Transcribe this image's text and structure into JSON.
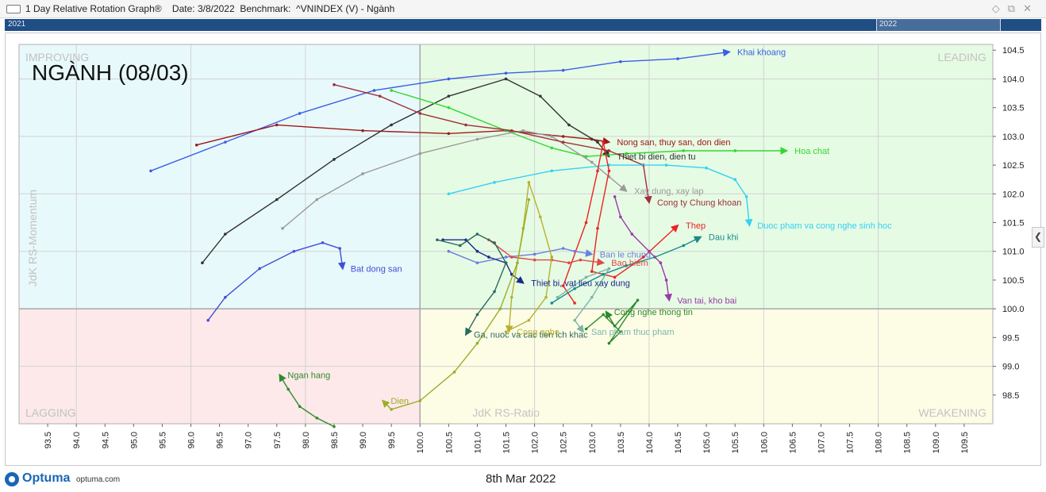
{
  "window": {
    "title": "1 Day Relative Rotation Graph®    Date: 3/8/2022  Benchmark:  ^VNINDEX (V) - Ngành",
    "icons": [
      "pin-icon",
      "restore-icon",
      "close-icon"
    ]
  },
  "timeline": {
    "start_label": "2021",
    "end_label": "2022"
  },
  "footer": {
    "logo": "Optuma",
    "url": "optuma.com",
    "date": "8th Mar 2022"
  },
  "chart_data": {
    "type": "scatter",
    "title": "NGÀNH (08/03)",
    "xlabel": "JdK RS-Ratio",
    "ylabel": "JdK RS-Momentum",
    "xlim": [
      93.0,
      110.0
    ],
    "ylim": [
      98.0,
      104.6
    ],
    "x_ticks": [
      "93.5",
      "94.0",
      "94.5",
      "95.0",
      "95.5",
      "96.0",
      "96.5",
      "97.0",
      "97.5",
      "98.0",
      "98.5",
      "99.0",
      "99.5",
      "100.0",
      "100.5",
      "101.0",
      "101.5",
      "102.0",
      "102.5",
      "103.0",
      "103.5",
      "104.0",
      "104.5",
      "105.0",
      "105.5",
      "106.0",
      "106.5",
      "107.0",
      "107.5",
      "108.0",
      "108.5",
      "109.0",
      "109.5"
    ],
    "y_ticks": [
      "98.5",
      "99.0",
      "99.5",
      "100.0",
      "100.5",
      "101.0",
      "101.5",
      "102.0",
      "102.5",
      "103.0",
      "103.5",
      "104.0",
      "104.5"
    ],
    "center": [
      100.0,
      100.0
    ],
    "quadrants": {
      "improving": {
        "label": "IMPROVING",
        "color": "#e8f9fb"
      },
      "leading": {
        "label": "LEADING",
        "color": "#e6fbe4"
      },
      "lagging": {
        "label": "LAGGING",
        "color": "#fde9e9"
      },
      "weakening": {
        "label": "WEAKENING",
        "color": "#fdfde6"
      }
    },
    "series": [
      {
        "name": "Khai khoang",
        "color": "#3a5fe6",
        "points": [
          [
            95.3,
            102.4
          ],
          [
            96.6,
            102.9
          ],
          [
            97.9,
            103.4
          ],
          [
            99.2,
            103.8
          ],
          [
            100.5,
            104.0
          ],
          [
            101.5,
            104.1
          ],
          [
            102.5,
            104.15
          ],
          [
            103.5,
            104.3
          ],
          [
            104.5,
            104.35
          ],
          [
            105.4,
            104.47
          ]
        ]
      },
      {
        "name": "Nong san, thuy san, don dien",
        "color": "#a01818",
        "points": [
          [
            96.1,
            102.85
          ],
          [
            97.5,
            103.2
          ],
          [
            99.0,
            103.1
          ],
          [
            100.5,
            103.05
          ],
          [
            101.5,
            103.1
          ],
          [
            102.5,
            103.0
          ],
          [
            103.0,
            102.95
          ],
          [
            103.3,
            102.9
          ]
        ]
      },
      {
        "name": "Thiet bi dien, dien tu",
        "color": "#333333",
        "points": [
          [
            96.2,
            100.8
          ],
          [
            96.6,
            101.3
          ],
          [
            97.5,
            101.9
          ],
          [
            98.5,
            102.6
          ],
          [
            99.5,
            103.2
          ],
          [
            100.5,
            103.7
          ],
          [
            101.5,
            104.0
          ],
          [
            102.1,
            103.7
          ],
          [
            102.6,
            103.2
          ],
          [
            103.1,
            102.9
          ],
          [
            103.3,
            102.65
          ]
        ]
      },
      {
        "name": "Hoa chat",
        "color": "#33d633",
        "points": [
          [
            99.5,
            103.8
          ],
          [
            100.5,
            103.5
          ],
          [
            101.5,
            103.1
          ],
          [
            102.3,
            102.8
          ],
          [
            102.9,
            102.65
          ],
          [
            103.6,
            102.7
          ],
          [
            104.6,
            102.75
          ],
          [
            105.5,
            102.75
          ],
          [
            106.4,
            102.75
          ]
        ]
      },
      {
        "name": "Xay dung, xay lap",
        "color": "#9a9a9a",
        "points": [
          [
            97.6,
            101.4
          ],
          [
            98.2,
            101.9
          ],
          [
            99.0,
            102.35
          ],
          [
            100.0,
            102.7
          ],
          [
            101.0,
            102.95
          ],
          [
            101.8,
            103.1
          ],
          [
            102.3,
            103.0
          ],
          [
            103.0,
            102.55
          ],
          [
            103.3,
            102.3
          ],
          [
            103.6,
            102.05
          ]
        ]
      },
      {
        "name": "Cong ty Chung khoan",
        "color": "#a0303c",
        "points": [
          [
            98.5,
            103.9
          ],
          [
            99.3,
            103.7
          ],
          [
            100.0,
            103.4
          ],
          [
            100.8,
            103.2
          ],
          [
            101.6,
            103.1
          ],
          [
            102.5,
            102.9
          ],
          [
            103.3,
            102.75
          ],
          [
            103.9,
            102.5
          ],
          [
            104.0,
            101.85
          ]
        ]
      },
      {
        "name": "Duoc pham va cong nghe sinh hoc",
        "color": "#33d2f2",
        "points": [
          [
            100.5,
            102.0
          ],
          [
            101.3,
            102.2
          ],
          [
            102.3,
            102.4
          ],
          [
            103.3,
            102.5
          ],
          [
            104.3,
            102.5
          ],
          [
            105.0,
            102.45
          ],
          [
            105.5,
            102.25
          ],
          [
            105.7,
            101.95
          ],
          [
            105.75,
            101.45
          ]
        ]
      },
      {
        "name": "Thep",
        "color": "#ee2222",
        "points": [
          [
            102.7,
            100.1
          ],
          [
            102.5,
            100.4
          ],
          [
            102.9,
            101.5
          ],
          [
            103.1,
            102.4
          ],
          [
            103.2,
            102.9
          ],
          [
            103.3,
            102.4
          ],
          [
            103.1,
            101.4
          ],
          [
            103.0,
            100.65
          ],
          [
            103.4,
            100.55
          ],
          [
            103.9,
            100.9
          ],
          [
            104.5,
            101.45
          ]
        ]
      },
      {
        "name": "Dau khi",
        "color": "#1a8a8a",
        "points": [
          [
            102.3,
            100.1
          ],
          [
            102.7,
            100.35
          ],
          [
            103.2,
            100.6
          ],
          [
            103.6,
            100.75
          ],
          [
            104.1,
            100.9
          ],
          [
            104.6,
            101.1
          ],
          [
            104.9,
            101.25
          ]
        ]
      },
      {
        "name": "Ban le chung",
        "color": "#6b7fe0",
        "points": [
          [
            100.5,
            101.0
          ],
          [
            101.0,
            100.8
          ],
          [
            101.5,
            100.9
          ],
          [
            102.0,
            100.95
          ],
          [
            102.5,
            101.05
          ],
          [
            102.7,
            101.0
          ],
          [
            103.0,
            100.95
          ]
        ]
      },
      {
        "name": "Bao hiem",
        "color": "#e04848",
        "points": [
          [
            101.2,
            101.2
          ],
          [
            101.6,
            100.9
          ],
          [
            102.0,
            100.85
          ],
          [
            102.3,
            100.85
          ],
          [
            102.6,
            100.8
          ],
          [
            102.8,
            100.85
          ],
          [
            103.2,
            100.8
          ]
        ]
      },
      {
        "name": "Thiet bi, vat lieu xay dung",
        "color": "#1a2a8a",
        "points": [
          [
            100.4,
            101.2
          ],
          [
            100.8,
            101.2
          ],
          [
            101.0,
            101.0
          ],
          [
            101.2,
            100.9
          ],
          [
            101.5,
            100.8
          ],
          [
            101.6,
            100.6
          ],
          [
            101.8,
            100.45
          ]
        ]
      },
      {
        "name": "Van tai, kho bai",
        "color": "#9a3aa8",
        "points": [
          [
            103.4,
            101.95
          ],
          [
            103.5,
            101.6
          ],
          [
            103.7,
            101.3
          ],
          [
            104.0,
            101.0
          ],
          [
            104.2,
            100.8
          ],
          [
            104.3,
            100.5
          ],
          [
            104.35,
            100.15
          ]
        ]
      },
      {
        "name": "Bat dong san",
        "color": "#4050d8",
        "points": [
          [
            96.3,
            99.8
          ],
          [
            96.6,
            100.2
          ],
          [
            97.2,
            100.7
          ],
          [
            97.8,
            101.0
          ],
          [
            98.3,
            101.15
          ],
          [
            98.6,
            101.05
          ],
          [
            98.65,
            100.7
          ]
        ]
      },
      {
        "name": "Ga, nuoc va cac tien ich khac",
        "color": "#2a6a5a",
        "points": [
          [
            100.3,
            101.2
          ],
          [
            100.7,
            101.1
          ],
          [
            101.0,
            101.3
          ],
          [
            101.3,
            101.15
          ],
          [
            101.5,
            100.8
          ],
          [
            101.3,
            100.3
          ],
          [
            101.0,
            99.9
          ],
          [
            100.8,
            99.55
          ]
        ]
      },
      {
        "name": "Cong nghe",
        "color": "#b8b030",
        "points": [
          [
            101.5,
            99.6
          ],
          [
            101.9,
            99.8
          ],
          [
            102.2,
            100.2
          ],
          [
            102.3,
            100.9
          ],
          [
            102.1,
            101.6
          ],
          [
            101.9,
            102.2
          ],
          [
            101.8,
            101.4
          ],
          [
            101.6,
            100.2
          ],
          [
            101.55,
            99.6
          ]
        ]
      },
      {
        "name": "San pham thuc pham",
        "color": "#7ab5a8",
        "points": [
          [
            102.4,
            100.2
          ],
          [
            102.9,
            100.55
          ],
          [
            103.3,
            100.7
          ],
          [
            103.0,
            100.2
          ],
          [
            102.7,
            99.8
          ],
          [
            102.85,
            99.6
          ]
        ]
      },
      {
        "name": "Dien",
        "color": "#9aae28",
        "points": [
          [
            101.9,
            101.9
          ],
          [
            101.7,
            100.8
          ],
          [
            101.4,
            100.0
          ],
          [
            101.0,
            99.4
          ],
          [
            100.6,
            98.9
          ],
          [
            100.0,
            98.4
          ],
          [
            99.5,
            98.25
          ],
          [
            99.35,
            98.4
          ]
        ]
      },
      {
        "name": "Ngan hang",
        "color": "#2e8a2a",
        "points": [
          [
            98.5,
            97.95
          ],
          [
            98.2,
            98.1
          ],
          [
            97.9,
            98.3
          ],
          [
            97.7,
            98.6
          ],
          [
            97.55,
            98.85
          ]
        ]
      },
      {
        "name": "Cong nghe thong tin",
        "color": "#2a8a2a",
        "points": [
          [
            102.9,
            99.65
          ],
          [
            103.2,
            99.9
          ],
          [
            103.5,
            99.6
          ],
          [
            103.3,
            99.4
          ],
          [
            103.8,
            100.15
          ],
          [
            103.4,
            99.7
          ],
          [
            103.25,
            99.95
          ]
        ]
      }
    ]
  }
}
